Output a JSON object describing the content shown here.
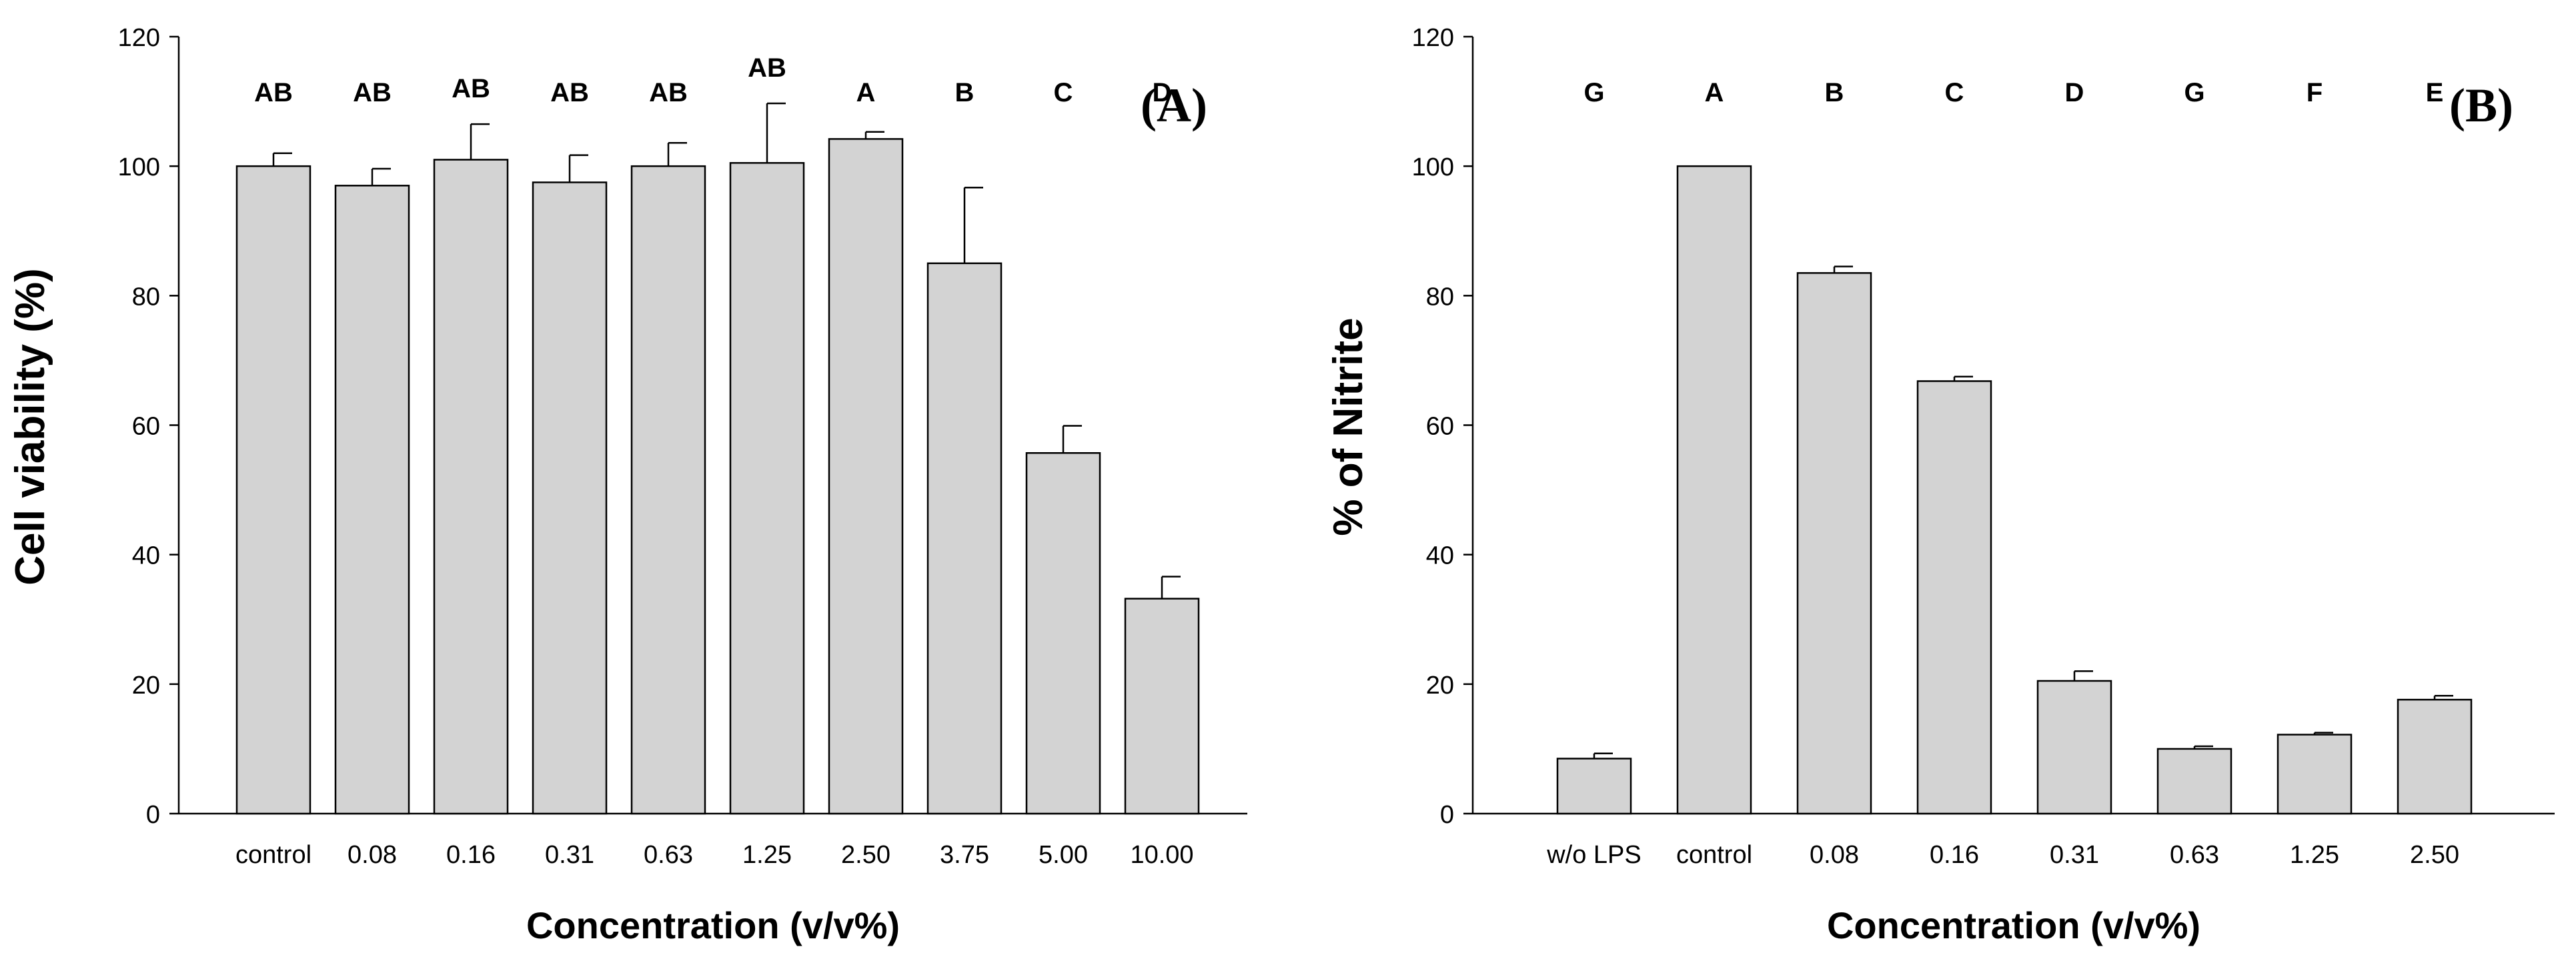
{
  "colors": {
    "bar_fill": "#d3d3d3",
    "stroke": "#000000",
    "background": "#ffffff"
  },
  "chart_data": [
    {
      "type": "bar",
      "panel_label": "(A)",
      "xlabel": "Concentration (v/v%)",
      "ylabel": "Cell viability (%)",
      "ylim": [
        0,
        120
      ],
      "yticks": [
        0,
        20,
        40,
        60,
        80,
        100,
        120
      ],
      "categories": [
        "control",
        "0.08",
        "0.16",
        "0.31",
        "0.63",
        "1.25",
        "2.50",
        "3.75",
        "5.00",
        "10.00"
      ],
      "values": [
        100,
        97,
        101,
        97.5,
        100,
        100.5,
        104.2,
        85,
        55.7,
        33.2
      ],
      "errors": [
        2,
        2.6,
        5.5,
        4.2,
        3.6,
        9.2,
        1.1,
        11.7,
        4.2,
        3.4
      ],
      "labels": [
        "AB",
        "AB",
        "AB",
        "AB",
        "AB",
        "AB",
        "A",
        "B",
        "C",
        "D"
      ],
      "grid": false
    },
    {
      "type": "bar",
      "panel_label": "(B)",
      "xlabel": "Concentration (v/v%)",
      "ylabel": "% of Nitrite",
      "ylim": [
        0,
        120
      ],
      "yticks": [
        0,
        20,
        40,
        60,
        80,
        100,
        120
      ],
      "categories": [
        "w/o LPS",
        "control",
        "0.08",
        "0.16",
        "0.31",
        "0.63",
        "1.25",
        "2.50"
      ],
      "values": [
        8.5,
        100,
        83.5,
        66.8,
        20.5,
        10,
        12.2,
        17.6
      ],
      "errors": [
        0.8,
        0,
        1.0,
        0.7,
        1.5,
        0.4,
        0.3,
        0.6
      ],
      "labels": [
        "G",
        "A",
        "B",
        "C",
        "D",
        "G",
        "F",
        "E"
      ],
      "grid": false
    }
  ]
}
